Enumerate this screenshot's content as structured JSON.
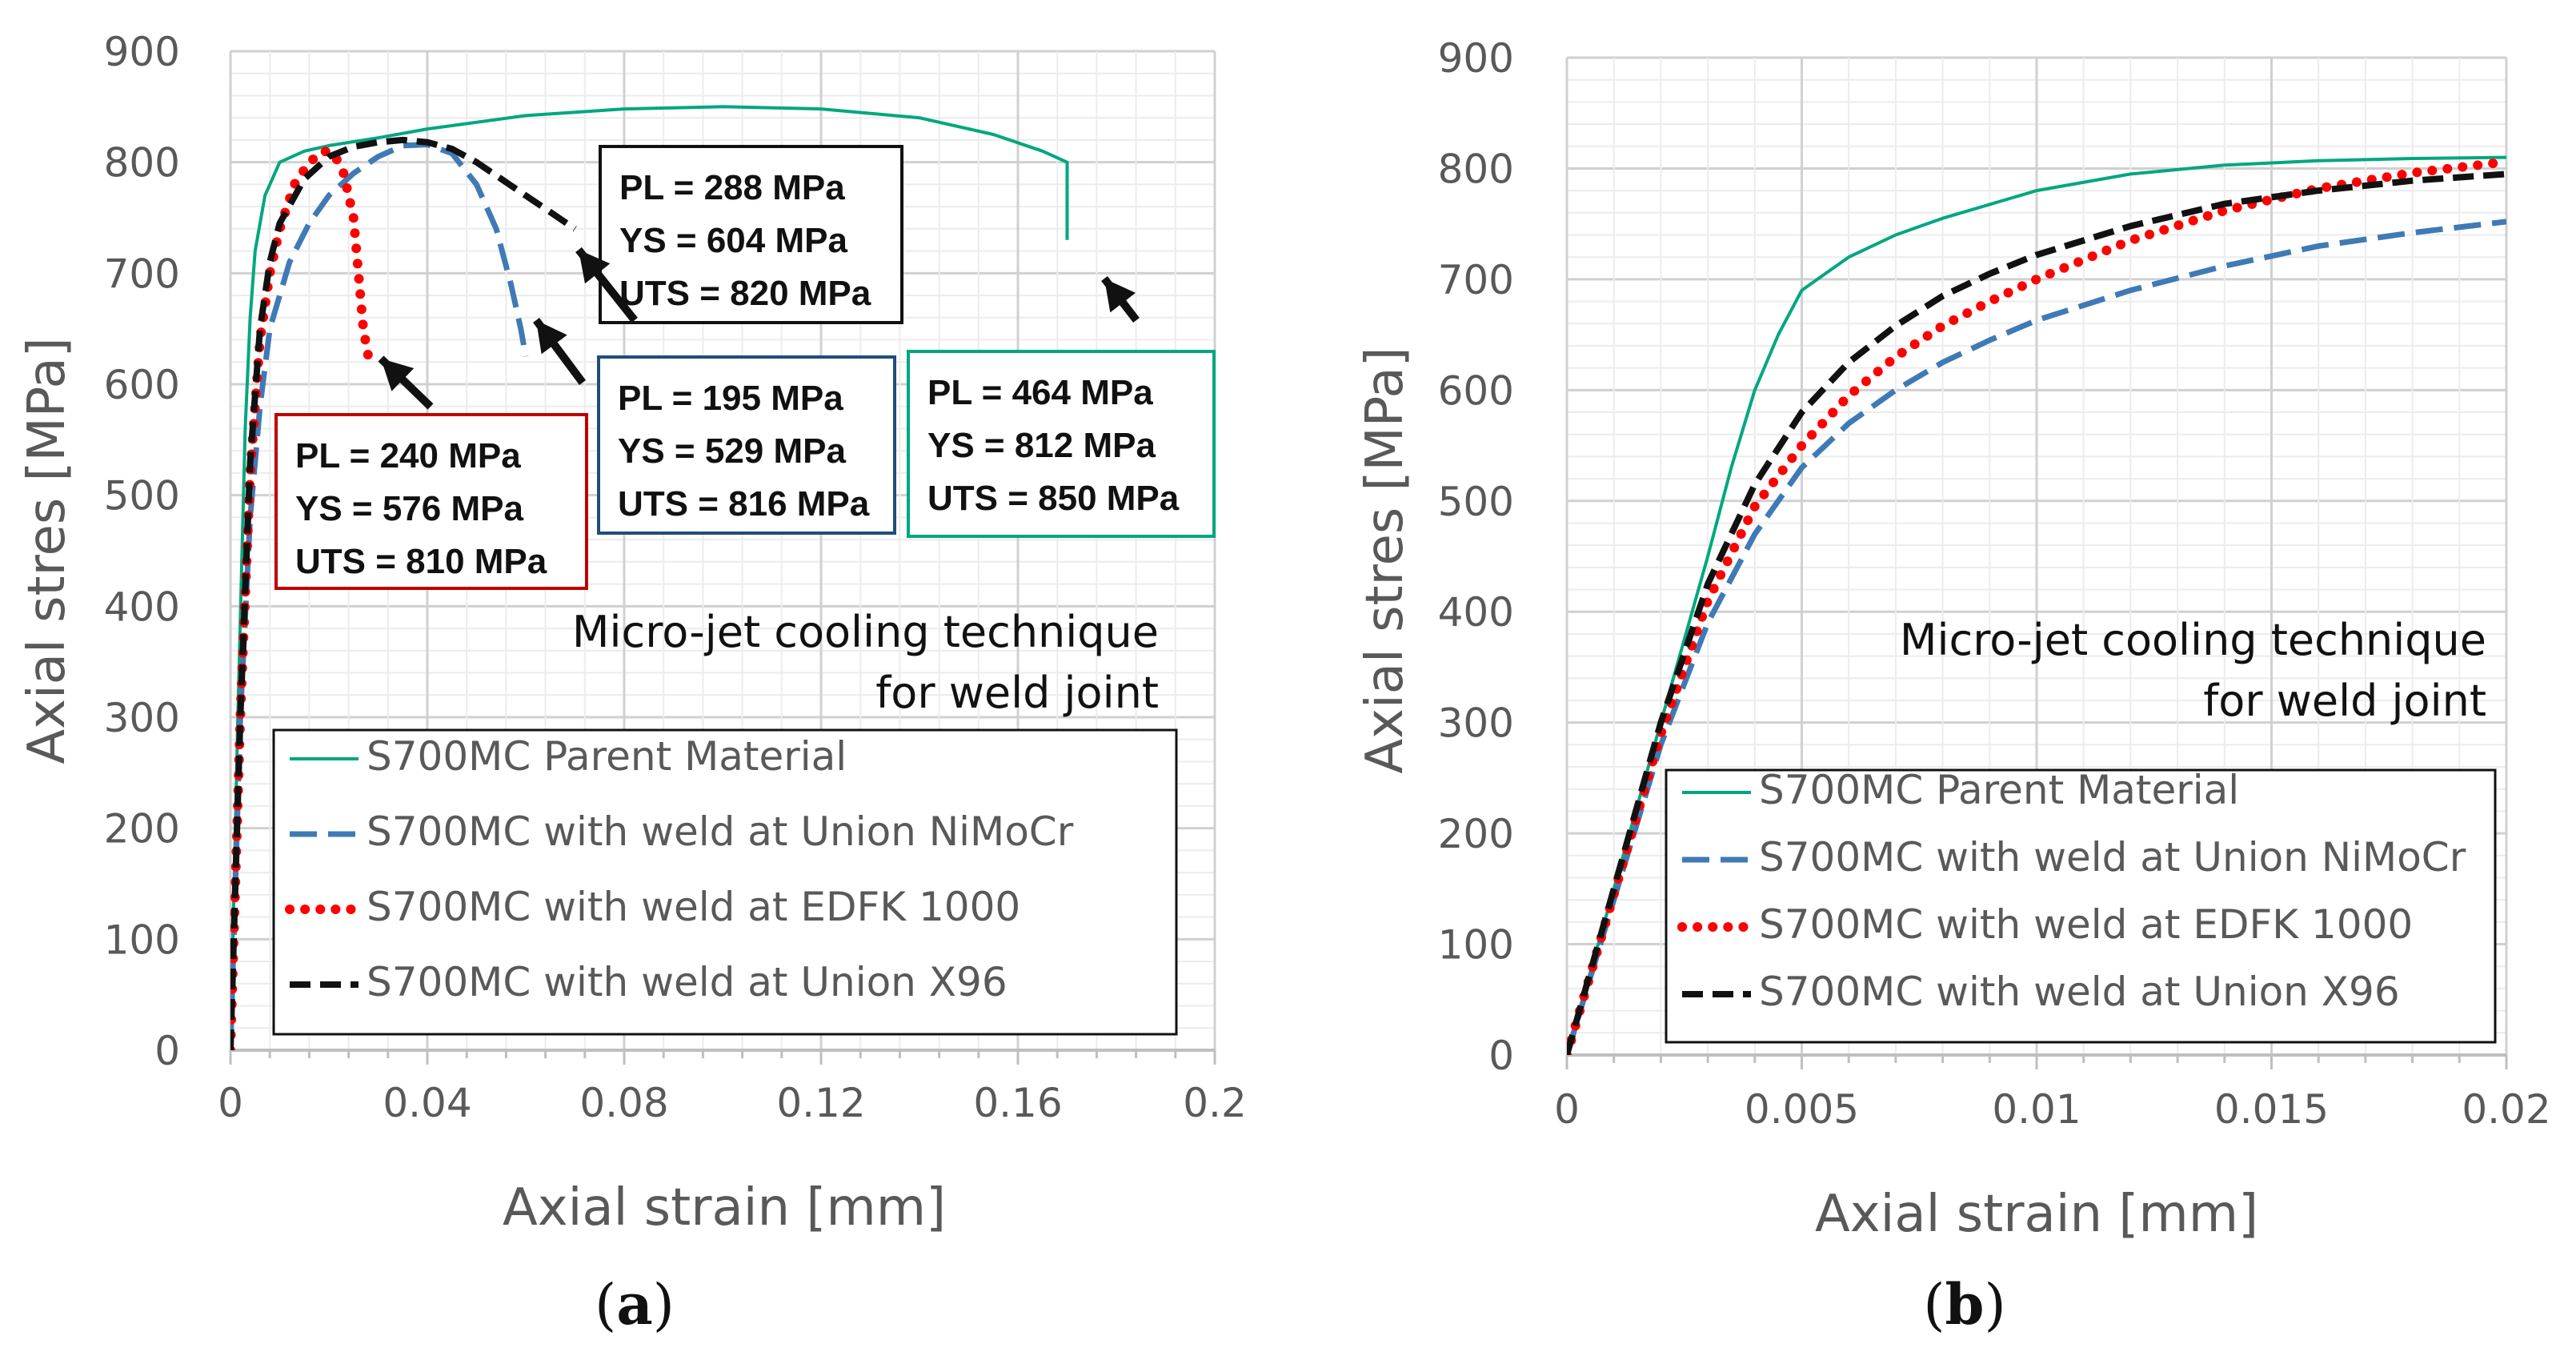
{
  "chart_data": [
    {
      "type": "line",
      "panel": "(a)",
      "xlabel": "Axial strain [mm]",
      "ylabel": "Axial stres [MPa]",
      "xlim": [
        0,
        0.2
      ],
      "ylim": [
        0,
        900
      ],
      "xticks": [
        "0",
        "0.04",
        "0.08",
        "0.12",
        "0.16",
        "0.2"
      ],
      "yticks": [
        "0",
        "100",
        "200",
        "300",
        "400",
        "500",
        "600",
        "700",
        "800",
        "900"
      ],
      "grid": true,
      "legend_position": "bottom",
      "note": [
        "Micro-jet cooling technique",
        "for weld joint"
      ],
      "series": [
        {
          "name": "S700MC Parent Material",
          "color": "#00a77e",
          "style": "solid",
          "x": [
            0,
            0.0015,
            0.003,
            0.004,
            0.005,
            0.007,
            0.01,
            0.015,
            0.02,
            0.03,
            0.04,
            0.06,
            0.08,
            0.1,
            0.12,
            0.14,
            0.155,
            0.165,
            0.17,
            0.17
          ],
          "y": [
            0,
            300,
            560,
            660,
            720,
            770,
            800,
            810,
            815,
            822,
            830,
            842,
            848,
            850,
            848,
            840,
            825,
            810,
            800,
            730
          ]
        },
        {
          "name": "S700MC with weld at Union NiMoCr",
          "color": "#3f7ab6",
          "style": "dashed",
          "x": [
            0,
            0.002,
            0.004,
            0.006,
            0.008,
            0.012,
            0.016,
            0.02,
            0.025,
            0.03,
            0.035,
            0.04,
            0.045,
            0.05,
            0.054,
            0.057,
            0.059,
            0.06
          ],
          "y": [
            0,
            300,
            480,
            580,
            650,
            710,
            745,
            770,
            790,
            805,
            815,
            816,
            808,
            780,
            740,
            690,
            650,
            625
          ]
        },
        {
          "name": "S700MC with weld at EDFK 1000",
          "color": "#ff0000",
          "style": "dotted",
          "x": [
            0,
            0.002,
            0.004,
            0.006,
            0.008,
            0.01,
            0.013,
            0.016,
            0.019,
            0.021,
            0.023,
            0.025,
            0.026,
            0.027,
            0.028
          ],
          "y": [
            0,
            300,
            520,
            640,
            700,
            740,
            780,
            800,
            810,
            808,
            790,
            750,
            700,
            650,
            625
          ]
        },
        {
          "name": "S700MC with weld at Union X96",
          "color": "#111111",
          "style": "dashed",
          "x": [
            0,
            0.002,
            0.004,
            0.006,
            0.008,
            0.01,
            0.015,
            0.02,
            0.025,
            0.03,
            0.035,
            0.04,
            0.045,
            0.05,
            0.055,
            0.06,
            0.065,
            0.07
          ],
          "y": [
            0,
            300,
            530,
            650,
            710,
            745,
            785,
            805,
            814,
            818,
            820,
            818,
            812,
            800,
            785,
            770,
            755,
            740
          ]
        }
      ],
      "annotations": [
        {
          "series": "S700MC with weld at EDFK 1000",
          "lines": [
            "PL = 240 MPa",
            "YS = 576 MPa",
            "UTS = 810 MPa"
          ],
          "border": "#c00000"
        },
        {
          "series": "S700MC with weld at Union X96",
          "lines": [
            "PL = 288 MPa",
            "YS = 604 MPa",
            "UTS = 820 MPa"
          ],
          "border": "#111111"
        },
        {
          "series": "S700MC with weld at Union NiMoCr",
          "lines": [
            "PL = 195 MPa",
            "YS = 529 MPa",
            "UTS = 816 MPa"
          ],
          "border": "#1f4e79"
        },
        {
          "series": "S700MC Parent Material",
          "lines": [
            "PL = 464 MPa",
            "YS = 812 MPa",
            "UTS = 850 MPa"
          ],
          "border": "#00a77e"
        }
      ]
    },
    {
      "type": "line",
      "panel": "(b)",
      "xlabel": "Axial strain [mm]",
      "ylabel": "Axial stres [MPa]",
      "xlim": [
        0,
        0.02
      ],
      "ylim": [
        0,
        900
      ],
      "xticks": [
        "0",
        "0.005",
        "0.01",
        "0.015",
        "0.02"
      ],
      "yticks": [
        "0",
        "100",
        "200",
        "300",
        "400",
        "500",
        "600",
        "700",
        "800",
        "900"
      ],
      "grid": true,
      "legend_position": "bottom",
      "note": [
        "Micro-jet cooling technique",
        "for weld joint"
      ],
      "series": [
        {
          "name": "S700MC Parent Material",
          "color": "#00a77e",
          "style": "solid",
          "x": [
            0,
            0.001,
            0.002,
            0.003,
            0.0035,
            0.004,
            0.0045,
            0.005,
            0.006,
            0.007,
            0.008,
            0.01,
            0.012,
            0.014,
            0.016,
            0.018,
            0.02
          ],
          "y": [
            0,
            150,
            300,
            450,
            530,
            600,
            650,
            690,
            720,
            740,
            755,
            780,
            795,
            803,
            807,
            809,
            810
          ]
        },
        {
          "name": "S700MC with weld at Union NiMoCr",
          "color": "#3f7ab6",
          "style": "dashed",
          "x": [
            0,
            0.001,
            0.002,
            0.003,
            0.004,
            0.005,
            0.006,
            0.007,
            0.008,
            0.009,
            0.01,
            0.012,
            0.014,
            0.016,
            0.018,
            0.02
          ],
          "y": [
            0,
            140,
            280,
            390,
            470,
            530,
            570,
            600,
            625,
            645,
            663,
            690,
            712,
            730,
            742,
            752
          ]
        },
        {
          "name": "S700MC with weld at EDFK 1000",
          "color": "#ff0000",
          "style": "dotted",
          "x": [
            0,
            0.001,
            0.002,
            0.003,
            0.004,
            0.005,
            0.006,
            0.007,
            0.008,
            0.009,
            0.01,
            0.012,
            0.014,
            0.016,
            0.018,
            0.02
          ],
          "y": [
            0,
            145,
            290,
            410,
            495,
            550,
            595,
            630,
            658,
            680,
            700,
            735,
            762,
            782,
            796,
            806
          ]
        },
        {
          "name": "S700MC with weld at Union X96",
          "color": "#111111",
          "style": "dashed",
          "x": [
            0,
            0.001,
            0.002,
            0.003,
            0.004,
            0.005,
            0.006,
            0.007,
            0.008,
            0.009,
            0.01,
            0.012,
            0.014,
            0.016,
            0.018,
            0.02
          ],
          "y": [
            0,
            150,
            300,
            425,
            515,
            580,
            625,
            658,
            685,
            705,
            722,
            748,
            768,
            780,
            789,
            795
          ]
        }
      ]
    }
  ]
}
